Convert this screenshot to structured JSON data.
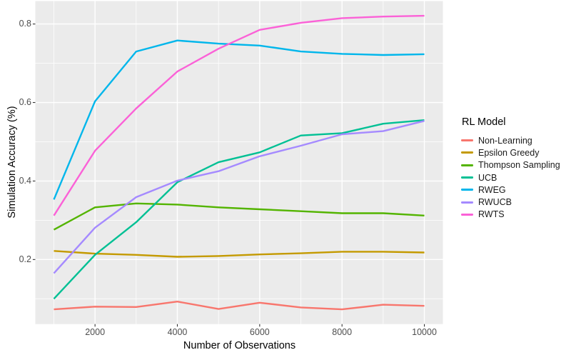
{
  "chart_data": {
    "type": "line",
    "title": "",
    "xlabel": "Number of Observations",
    "ylabel": "Simulation Accuracy (%)",
    "legend_title": "RL Model",
    "legend_position": "right",
    "grid": true,
    "panel_background": "#EBEBEB",
    "grid_color": "#FFFFFF",
    "tick_color": "#333333",
    "tick_label_color": "#4D4D4D",
    "xlim": [
      550,
      10450
    ],
    "ylim": [
      0.0356,
      0.8584
    ],
    "x_major_ticks": [
      2000,
      4000,
      6000,
      8000,
      10000
    ],
    "x_tick_labels": [
      "2000",
      "4000",
      "6000",
      "8000",
      "10000"
    ],
    "x_minor_gridlines": [
      1000,
      3000,
      5000,
      7000,
      9000
    ],
    "y_major_ticks": [
      0.2,
      0.4,
      0.6,
      0.8
    ],
    "y_tick_labels": [
      "0.2",
      "0.4",
      "0.6",
      "0.8"
    ],
    "y_minor_gridlines": [
      0.1,
      0.3,
      0.5,
      0.7
    ],
    "x": [
      1000,
      2000,
      3000,
      4000,
      5000,
      6000,
      7000,
      8000,
      9000,
      10000
    ],
    "series": [
      {
        "name": "Non-Learning",
        "color": "#F8766D",
        "values": [
          0.073,
          0.08,
          0.079,
          0.093,
          0.074,
          0.09,
          0.078,
          0.073,
          0.085,
          0.082
        ]
      },
      {
        "name": "Epsilon Greedy",
        "color": "#C49A00",
        "values": [
          0.222,
          0.215,
          0.212,
          0.207,
          0.209,
          0.213,
          0.216,
          0.22,
          0.22,
          0.218
        ]
      },
      {
        "name": "Thompson Sampling",
        "color": "#53B400",
        "values": [
          0.276,
          0.333,
          0.343,
          0.34,
          0.333,
          0.328,
          0.323,
          0.318,
          0.318,
          0.312
        ]
      },
      {
        "name": "UCB",
        "color": "#00C094",
        "values": [
          0.1,
          0.212,
          0.295,
          0.397,
          0.448,
          0.473,
          0.516,
          0.522,
          0.546,
          0.555
        ]
      },
      {
        "name": "RWEG",
        "color": "#00B6EB",
        "values": [
          0.353,
          0.603,
          0.73,
          0.758,
          0.75,
          0.745,
          0.73,
          0.724,
          0.721,
          0.723
        ]
      },
      {
        "name": "RWUCB",
        "color": "#A58AFF",
        "values": [
          0.165,
          0.281,
          0.359,
          0.401,
          0.425,
          0.463,
          0.49,
          0.519,
          0.527,
          0.553
        ]
      },
      {
        "name": "RWTS",
        "color": "#FB61D7",
        "values": [
          0.312,
          0.477,
          0.585,
          0.679,
          0.737,
          0.785,
          0.803,
          0.815,
          0.819,
          0.821
        ]
      }
    ]
  },
  "legend": {
    "title": "RL Model"
  }
}
